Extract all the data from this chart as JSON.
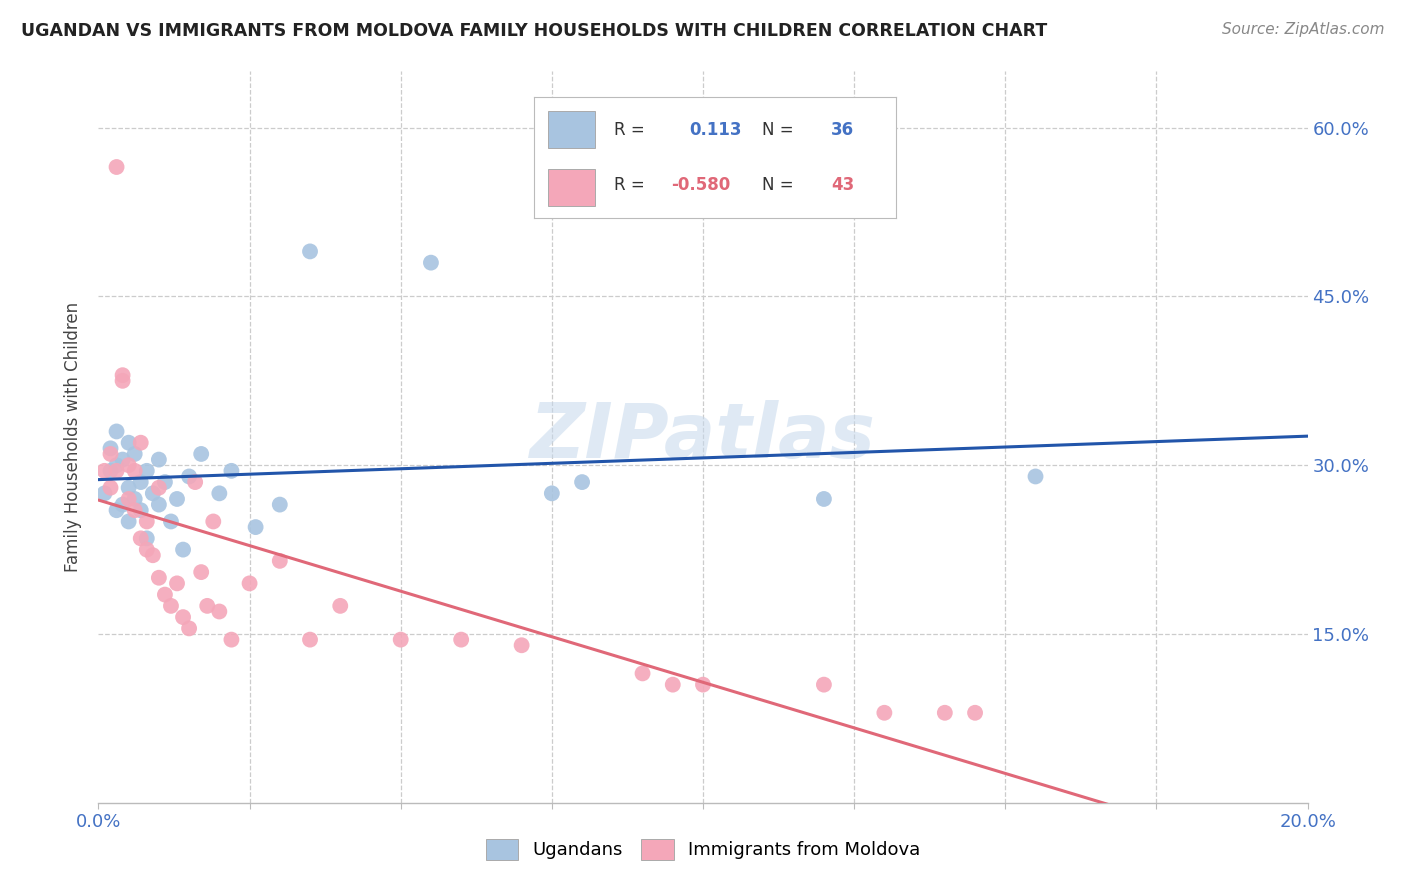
{
  "title": "UGANDAN VS IMMIGRANTS FROM MOLDOVA FAMILY HOUSEHOLDS WITH CHILDREN CORRELATION CHART",
  "source": "Source: ZipAtlas.com",
  "ylabel": "Family Households with Children",
  "x_min": 0.0,
  "x_max": 0.2,
  "y_min": 0.0,
  "y_max": 0.65,
  "x_ticks": [
    0.0,
    0.025,
    0.05,
    0.075,
    0.1,
    0.125,
    0.15,
    0.175,
    0.2
  ],
  "y_ticks": [
    0.0,
    0.15,
    0.3,
    0.45,
    0.6
  ],
  "r_ugandan": 0.113,
  "n_ugandan": 36,
  "r_moldova": -0.58,
  "n_moldova": 43,
  "color_ugandan": "#a8c4e0",
  "color_moldova": "#f4a7b9",
  "line_color_ugandan": "#2255aa",
  "line_color_moldova": "#e06878",
  "watermark": "ZIPatlas",
  "ugandan_x": [
    0.001,
    0.002,
    0.002,
    0.003,
    0.003,
    0.003,
    0.004,
    0.004,
    0.005,
    0.005,
    0.005,
    0.006,
    0.006,
    0.007,
    0.007,
    0.008,
    0.008,
    0.009,
    0.01,
    0.01,
    0.011,
    0.012,
    0.013,
    0.014,
    0.015,
    0.017,
    0.02,
    0.022,
    0.026,
    0.03,
    0.035,
    0.055,
    0.075,
    0.08,
    0.12,
    0.155
  ],
  "ugandan_y": [
    0.275,
    0.295,
    0.315,
    0.26,
    0.3,
    0.33,
    0.265,
    0.305,
    0.28,
    0.25,
    0.32,
    0.27,
    0.31,
    0.285,
    0.26,
    0.295,
    0.235,
    0.275,
    0.305,
    0.265,
    0.285,
    0.25,
    0.27,
    0.225,
    0.29,
    0.31,
    0.275,
    0.295,
    0.245,
    0.265,
    0.49,
    0.48,
    0.275,
    0.285,
    0.27,
    0.29
  ],
  "moldova_x": [
    0.001,
    0.002,
    0.002,
    0.003,
    0.003,
    0.004,
    0.004,
    0.005,
    0.005,
    0.006,
    0.006,
    0.007,
    0.007,
    0.008,
    0.008,
    0.009,
    0.01,
    0.01,
    0.011,
    0.012,
    0.013,
    0.014,
    0.015,
    0.016,
    0.017,
    0.018,
    0.019,
    0.02,
    0.022,
    0.025,
    0.03,
    0.035,
    0.04,
    0.05,
    0.06,
    0.07,
    0.09,
    0.095,
    0.1,
    0.12,
    0.13,
    0.14,
    0.145
  ],
  "moldova_y": [
    0.295,
    0.31,
    0.28,
    0.565,
    0.295,
    0.38,
    0.375,
    0.3,
    0.27,
    0.295,
    0.26,
    0.235,
    0.32,
    0.25,
    0.225,
    0.22,
    0.28,
    0.2,
    0.185,
    0.175,
    0.195,
    0.165,
    0.155,
    0.285,
    0.205,
    0.175,
    0.25,
    0.17,
    0.145,
    0.195,
    0.215,
    0.145,
    0.175,
    0.145,
    0.145,
    0.14,
    0.115,
    0.105,
    0.105,
    0.105,
    0.08,
    0.08,
    0.08
  ]
}
